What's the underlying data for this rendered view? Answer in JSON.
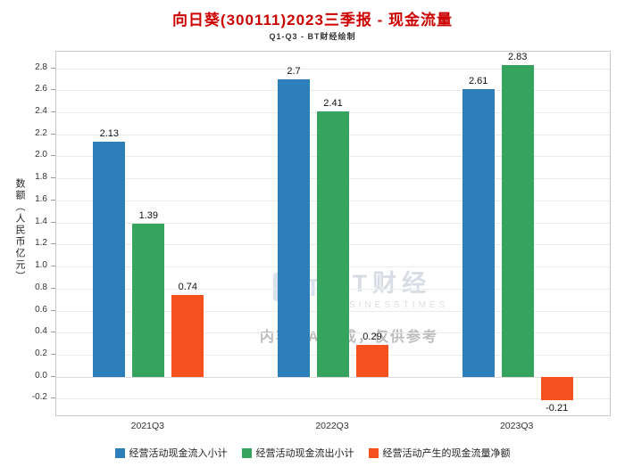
{
  "watermark": {
    "logo_text": "BT财经",
    "logo_sub": "BUSINESSTIMES",
    "disclaimer": "内容由AI生成，仅供参考"
  },
  "chart_data": {
    "type": "bar",
    "title": "向日葵(300111)2023三季报 - 现金流量",
    "subtitle": "Q1-Q3 - BT财经绘制",
    "categories": [
      "2021Q3",
      "2022Q3",
      "2023Q3"
    ],
    "series": [
      {
        "name": "经营活动现金流入小计",
        "color": "#2c7fb8",
        "values": [
          2.13,
          2.7,
          2.61
        ]
      },
      {
        "name": "经营活动现金流出小计",
        "color": "#36a35f",
        "values": [
          1.39,
          2.41,
          2.83
        ]
      },
      {
        "name": "经营活动产生的现金流量净额",
        "color": "#f4511e",
        "values": [
          0.74,
          0.29,
          -0.21
        ]
      }
    ],
    "xlabel": "",
    "ylabel": "数额（人民币亿元）",
    "ylim": [
      -0.35,
      2.95
    ],
    "yticks": [
      -0.2,
      0.0,
      0.2,
      0.4,
      0.6,
      0.8,
      1.0,
      1.2,
      1.4,
      1.6,
      1.8,
      2.0,
      2.2,
      2.4,
      2.6,
      2.8
    ],
    "grid": true,
    "legend_position": "bottom"
  }
}
